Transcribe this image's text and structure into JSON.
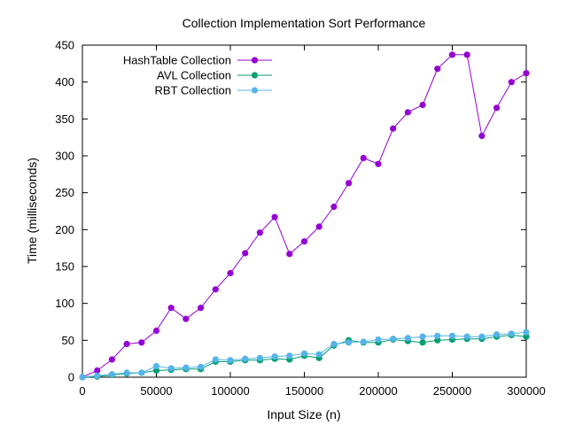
{
  "chart_data": {
    "type": "line",
    "title": "Collection Implementation Sort Performance",
    "xlabel": "Input Size (n)",
    "ylabel": "Time (milliseconds)",
    "xlim": [
      0,
      300000
    ],
    "ylim": [
      0,
      450
    ],
    "xticks": [
      0,
      50000,
      100000,
      150000,
      200000,
      250000,
      300000
    ],
    "yticks": [
      0,
      50,
      100,
      150,
      200,
      250,
      300,
      350,
      400,
      450
    ],
    "grid": false,
    "legend_position": "top-left",
    "x": [
      0,
      10000,
      20000,
      30000,
      40000,
      50000,
      60000,
      70000,
      80000,
      90000,
      100000,
      110000,
      120000,
      130000,
      140000,
      150000,
      160000,
      170000,
      180000,
      190000,
      200000,
      210000,
      220000,
      230000,
      240000,
      250000,
      260000,
      270000,
      280000,
      290000,
      300000
    ],
    "series": [
      {
        "name": "HashTable Collection",
        "color": "#9400d3",
        "values": [
          0,
          9,
          24,
          45,
          47,
          63,
          94,
          79,
          94,
          119,
          141,
          168,
          196,
          217,
          167,
          184,
          204,
          231,
          263,
          297,
          289,
          337,
          359,
          369,
          418,
          437,
          437,
          327,
          365,
          400,
          412
        ]
      },
      {
        "name": "AVL Collection",
        "color": "#009e73",
        "values": [
          0,
          1,
          3,
          5,
          6,
          9,
          10,
          11,
          11,
          21,
          21,
          23,
          23,
          25,
          24,
          29,
          26,
          43,
          50,
          47,
          47,
          51,
          49,
          47,
          50,
          51,
          52,
          52,
          55,
          57,
          55
        ]
      },
      {
        "name": "RBT Collection",
        "color": "#56b4e9",
        "values": [
          0,
          2,
          4,
          6,
          6,
          15,
          12,
          13,
          14,
          24,
          23,
          25,
          26,
          28,
          29,
          32,
          31,
          45,
          47,
          48,
          51,
          52,
          53,
          55,
          56,
          56,
          55,
          55,
          58,
          59,
          61
        ]
      }
    ]
  }
}
